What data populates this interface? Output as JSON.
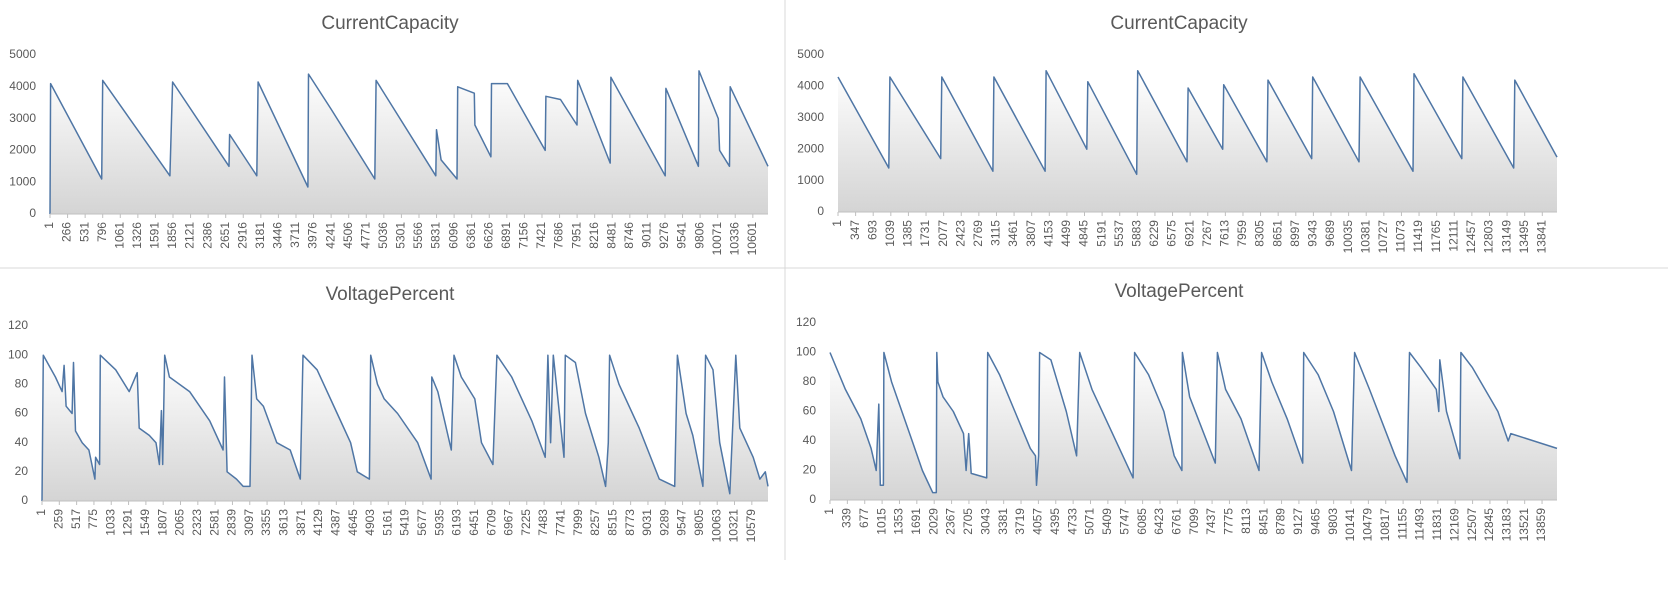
{
  "chart_data": [
    {
      "type": "line",
      "title": "CurrentCapacity",
      "color": "#4f76a5",
      "xlim": [
        1,
        10830
      ],
      "ylim": [
        0,
        5000
      ],
      "yticks": [
        0,
        1000,
        2000,
        3000,
        4000,
        5000
      ],
      "xticks": [
        1,
        266,
        531,
        796,
        1061,
        1326,
        1591,
        1856,
        2121,
        2386,
        2651,
        2916,
        3181,
        3446,
        3711,
        3976,
        4241,
        4506,
        4771,
        5036,
        5301,
        5566,
        5831,
        6096,
        6361,
        6626,
        6891,
        7156,
        7421,
        7686,
        7951,
        8216,
        8481,
        8746,
        9011,
        9276,
        9541,
        9806,
        10071,
        10336,
        10601
      ],
      "x": [
        1,
        10,
        780,
        796,
        1810,
        1850,
        2700,
        2710,
        3120,
        3140,
        3890,
        3900,
        4241,
        4900,
        4920,
        5820,
        5830,
        5900,
        6140,
        6150,
        6400,
        6410,
        6650,
        6660,
        6900,
        7470,
        7480,
        7700,
        7950,
        7960,
        8450,
        8460,
        9280,
        9290,
        9780,
        9790,
        10080,
        10100,
        10250,
        10260,
        10830
      ],
      "values": [
        0,
        4100,
        1100,
        4200,
        1200,
        4150,
        1500,
        2500,
        1200,
        4150,
        850,
        4400,
        3300,
        1100,
        4200,
        1200,
        2650,
        1700,
        1100,
        4000,
        3800,
        2800,
        1800,
        4100,
        4100,
        2000,
        3700,
        3600,
        2800,
        4200,
        1600,
        4300,
        1200,
        3950,
        1500,
        4500,
        3000,
        2000,
        1500,
        4000,
        1500
      ]
    },
    {
      "type": "line",
      "title": "CurrentCapacity",
      "color": "#4f76a5",
      "xlim": [
        1,
        14130
      ],
      "ylim": [
        0,
        5000
      ],
      "yticks": [
        0,
        1000,
        2000,
        3000,
        4000,
        5000
      ],
      "xticks": [
        1,
        347,
        693,
        1039,
        1385,
        1731,
        2077,
        2423,
        2769,
        3115,
        3461,
        3807,
        4153,
        4499,
        4845,
        5191,
        5537,
        5883,
        6229,
        6575,
        6921,
        7267,
        7613,
        7959,
        8305,
        8651,
        8997,
        9343,
        9689,
        10035,
        10381,
        10727,
        11073,
        11419,
        11765,
        12111,
        12457,
        12803,
        13149,
        13495,
        13841
      ],
      "x": [
        1,
        1000,
        1020,
        2020,
        2040,
        3045,
        3065,
        4070,
        4090,
        4890,
        4910,
        5870,
        5890,
        6860,
        6880,
        7560,
        7580,
        8430,
        8450,
        9310,
        9330,
        10240,
        10260,
        11300,
        11320,
        12260,
        12280,
        13280,
        13300,
        14130
      ],
      "values": [
        4300,
        1400,
        4300,
        1700,
        4300,
        1300,
        4300,
        1300,
        4500,
        2000,
        4150,
        1200,
        4500,
        1600,
        3950,
        2000,
        4050,
        1600,
        4200,
        1700,
        4300,
        1600,
        4300,
        1300,
        4400,
        1700,
        4300,
        1400,
        4200,
        1750
      ]
    },
    {
      "type": "line",
      "title": "VoltagePercent",
      "color": "#4f76a5",
      "xlim": [
        1,
        10820
      ],
      "ylim": [
        0,
        120
      ],
      "yticks": [
        0,
        20,
        40,
        60,
        80,
        100,
        120
      ],
      "xticks": [
        1,
        259,
        517,
        775,
        1033,
        1291,
        1549,
        1807,
        2065,
        2323,
        2581,
        2839,
        3097,
        3355,
        3613,
        3871,
        4129,
        4387,
        4645,
        4903,
        5161,
        5419,
        5677,
        5935,
        6193,
        6451,
        6709,
        6967,
        7225,
        7483,
        7741,
        7999,
        8257,
        8515,
        8773,
        9031,
        9289,
        9547,
        9805,
        10063,
        10321,
        10579
      ],
      "x": [
        1,
        20,
        200,
        300,
        330,
        360,
        450,
        470,
        500,
        600,
        700,
        790,
        800,
        860,
        870,
        1100,
        1300,
        1420,
        1450,
        1600,
        1700,
        1750,
        1780,
        1800,
        1830,
        1900,
        2200,
        2500,
        2700,
        2720,
        2760,
        2900,
        3000,
        3100,
        3130,
        3200,
        3300,
        3500,
        3700,
        3850,
        3890,
        4100,
        4400,
        4600,
        4700,
        4880,
        4900,
        5000,
        5100,
        5300,
        5600,
        5800,
        5810,
        5900,
        6000,
        6100,
        6140,
        6250,
        6450,
        6550,
        6720,
        6780,
        7000,
        7300,
        7500,
        7540,
        7580,
        7620,
        7780,
        7800,
        7950,
        8100,
        8300,
        8400,
        8440,
        8460,
        8600,
        8900,
        9200,
        9430,
        9470,
        9600,
        9700,
        9850,
        9890,
        10000,
        10100,
        10250,
        10340,
        10400,
        10500,
        10600,
        10700,
        10780,
        10820
      ],
      "values": [
        0,
        100,
        85,
        75,
        93,
        65,
        60,
        95,
        48,
        40,
        35,
        15,
        30,
        25,
        100,
        90,
        75,
        88,
        50,
        45,
        40,
        25,
        62,
        25,
        100,
        85,
        75,
        55,
        35,
        85,
        20,
        15,
        10,
        10,
        100,
        70,
        65,
        40,
        35,
        15,
        100,
        90,
        60,
        40,
        20,
        15,
        100,
        80,
        70,
        60,
        40,
        15,
        85,
        75,
        55,
        35,
        100,
        85,
        70,
        40,
        25,
        100,
        85,
        55,
        30,
        100,
        40,
        100,
        30,
        100,
        95,
        60,
        30,
        10,
        40,
        100,
        80,
        50,
        15,
        10,
        100,
        60,
        45,
        10,
        100,
        90,
        40,
        5,
        100,
        50,
        40,
        30,
        15,
        20,
        10
      ]
    },
    {
      "type": "line",
      "title": "VoltagePercent",
      "color": "#4f76a5",
      "xlim": [
        1,
        14150
      ],
      "ylim": [
        0,
        120
      ],
      "yticks": [
        0,
        20,
        40,
        60,
        80,
        100,
        120
      ],
      "xticks": [
        1,
        339,
        677,
        1015,
        1353,
        1691,
        2029,
        2367,
        2705,
        3043,
        3381,
        3719,
        4057,
        4395,
        4733,
        5071,
        5409,
        5747,
        6085,
        6423,
        6761,
        7099,
        7437,
        7775,
        8113,
        8451,
        8789,
        9127,
        9465,
        9803,
        10141,
        10479,
        10817,
        11155,
        11493,
        11831,
        12169,
        12507,
        12845,
        13183,
        13521,
        13859
      ],
      "x": [
        1,
        300,
        600,
        800,
        900,
        950,
        980,
        1040,
        1050,
        1200,
        1400,
        1600,
        1800,
        2000,
        2070,
        2080,
        2100,
        2200,
        2400,
        2600,
        2650,
        2700,
        2750,
        3050,
        3070,
        3300,
        3600,
        3900,
        4000,
        4020,
        4060,
        4080,
        4300,
        4600,
        4800,
        4860,
        5100,
        5500,
        5900,
        5930,
        6200,
        6500,
        6700,
        6850,
        6860,
        7000,
        7500,
        7540,
        7700,
        8000,
        8350,
        8400,
        8600,
        8900,
        9200,
        9220,
        9500,
        9800,
        10150,
        10210,
        10500,
        11000,
        11230,
        11280,
        11500,
        11800,
        11850,
        11870,
        12000,
        12260,
        12280,
        12500,
        13000,
        13200,
        13250,
        14150
      ],
      "values": [
        100,
        75,
        55,
        35,
        20,
        65,
        10,
        10,
        100,
        80,
        60,
        40,
        20,
        5,
        5,
        100,
        80,
        70,
        60,
        45,
        20,
        45,
        18,
        15,
        100,
        85,
        60,
        35,
        30,
        10,
        30,
        100,
        95,
        60,
        30,
        100,
        75,
        45,
        15,
        100,
        85,
        60,
        30,
        20,
        100,
        70,
        25,
        100,
        75,
        55,
        20,
        100,
        80,
        55,
        25,
        100,
        85,
        60,
        20,
        100,
        75,
        30,
        12,
        100,
        90,
        75,
        60,
        95,
        60,
        28,
        100,
        90,
        60,
        40,
        45,
        35
      ]
    }
  ]
}
